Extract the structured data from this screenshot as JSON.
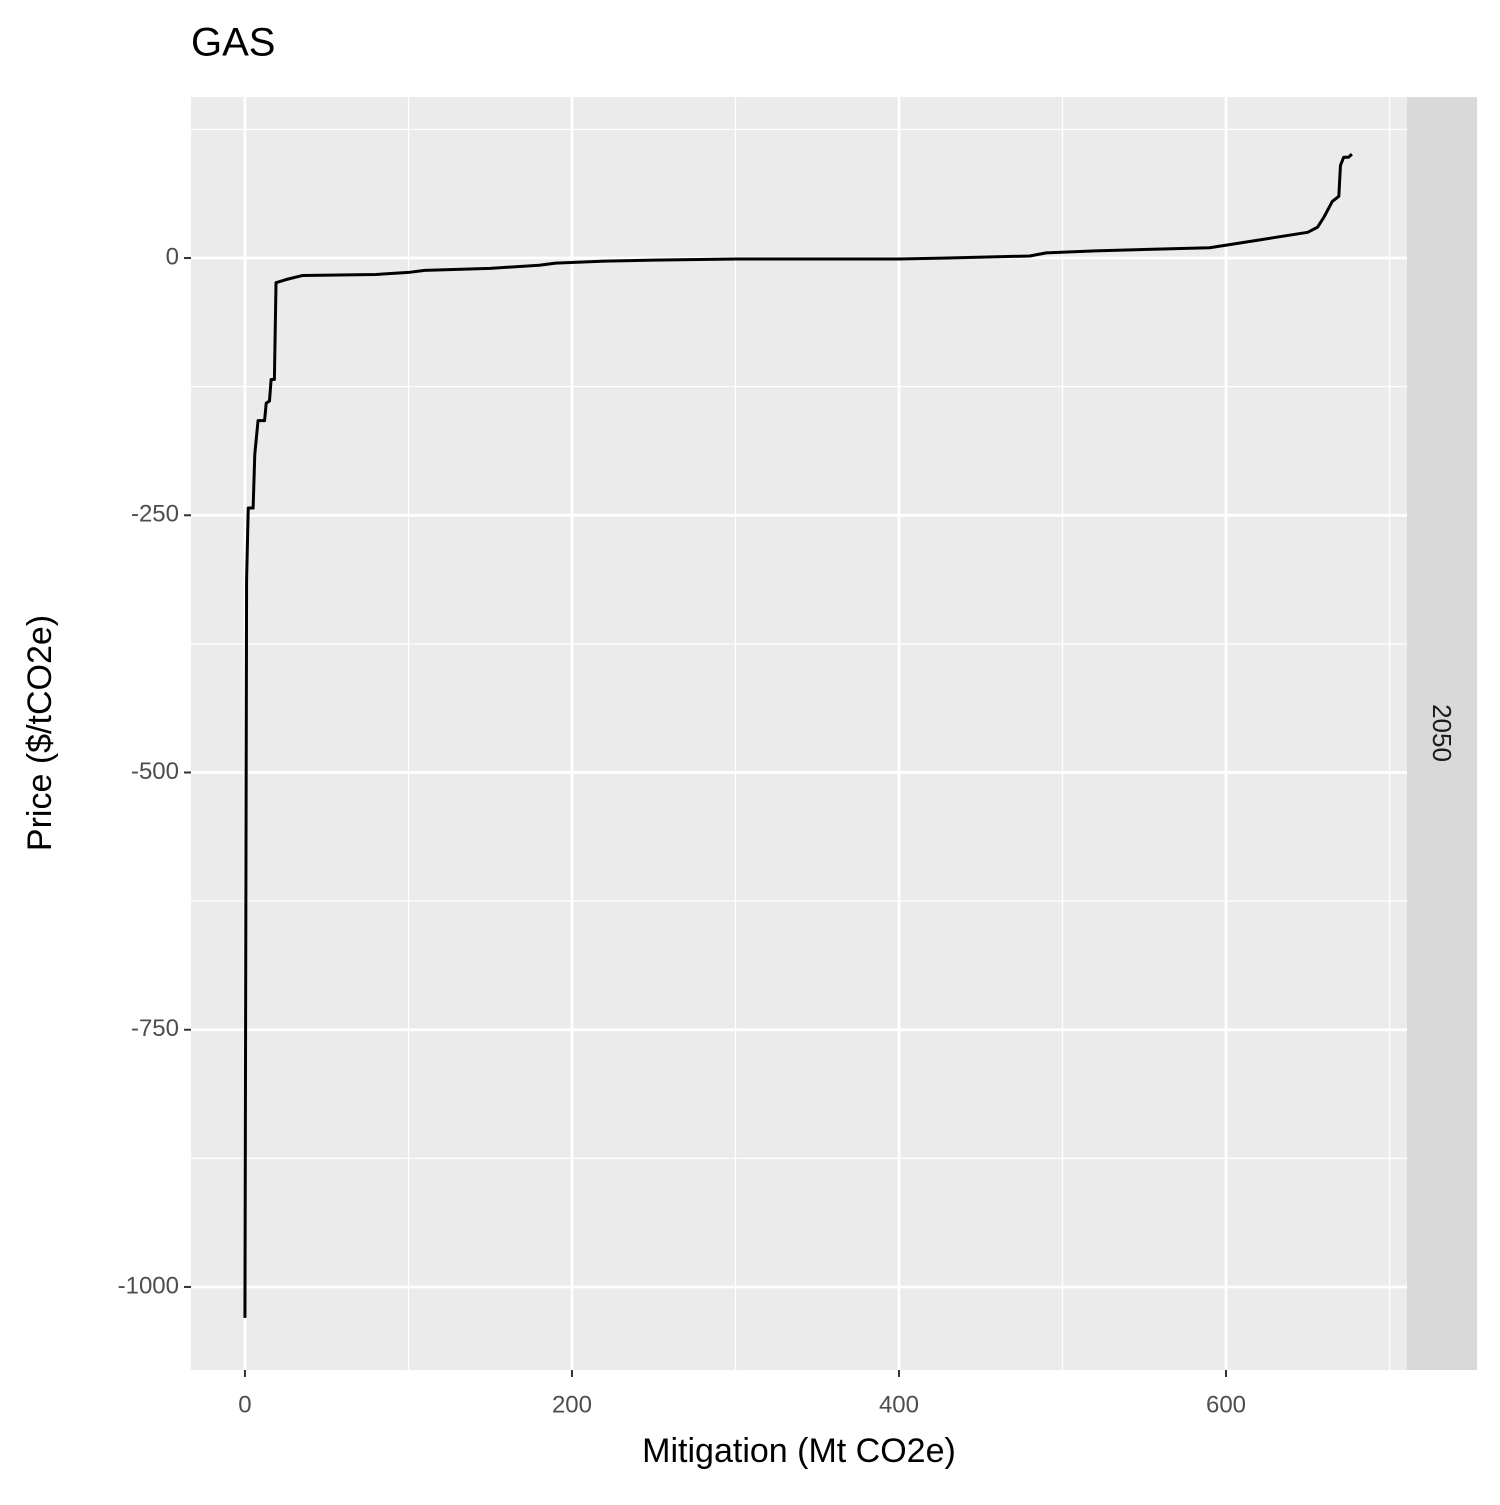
{
  "chart_data": {
    "type": "line",
    "title": "GAS",
    "facet_label": "2050",
    "x_label": "Mitigation (Mt CO2e)",
    "y_label": "Price ($/tCO2e)",
    "x": [
      0,
      0,
      1,
      2,
      5,
      6,
      8,
      12,
      13,
      15,
      16,
      18,
      19,
      25,
      35,
      80,
      100,
      110,
      150,
      180,
      190,
      220,
      250,
      300,
      400,
      430,
      480,
      490,
      520,
      590,
      610,
      630,
      650,
      656,
      660,
      665,
      669,
      670,
      672,
      675,
      677
    ],
    "values": [
      -1030,
      -1020,
      -313,
      -243,
      -243,
      -191,
      -158,
      -158,
      -141,
      -139,
      -118,
      -118,
      -24,
      -21,
      -17,
      -16,
      -14,
      -12,
      -10,
      -7,
      -5,
      -3,
      -2,
      -1,
      -1,
      0,
      2,
      5,
      7,
      10,
      15,
      20,
      25,
      30,
      40,
      55,
      60,
      90,
      98,
      98,
      101
    ],
    "color": "#000000",
    "xlim": [
      -33.0,
      710.7
    ],
    "xticks": [
      0,
      200,
      400,
      600
    ],
    "x_minor_grid": [
      100,
      300,
      500,
      700
    ],
    "ylim": [
      -1080.7,
      156.5
    ],
    "yticks": [
      -1000,
      -750,
      -500,
      -250,
      0
    ],
    "y_minor_grid": [
      -875,
      -625,
      -375,
      -125,
      125
    ],
    "grid": true
  }
}
